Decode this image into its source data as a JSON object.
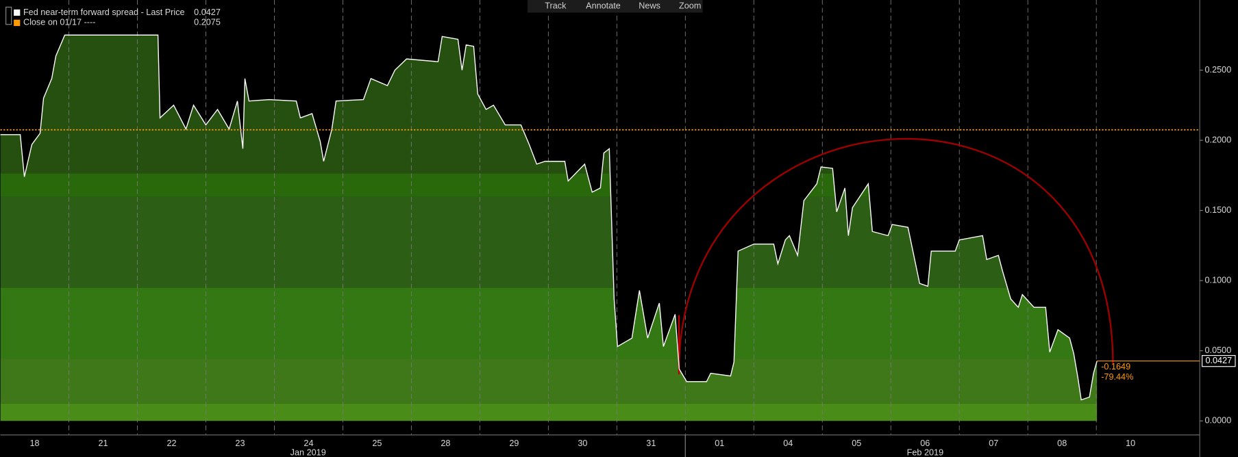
{
  "chart_data": {
    "type": "area",
    "series": [
      {
        "name": "Fed near-term forward spread - Last Price",
        "color": "#ffffff",
        "last_value": 0.0427,
        "x": [
          0,
          0.29,
          0.35,
          0.46,
          0.58,
          0.63,
          0.75,
          0.81,
          0.94,
          2.3,
          2.33,
          2.53,
          2.71,
          2.82,
          3.0,
          3.17,
          3.34,
          3.46,
          3.54,
          3.57,
          3.63,
          3.92,
          4.32,
          4.38,
          4.55,
          4.67,
          4.72,
          4.84,
          4.9,
          5.3,
          5.41,
          5.65,
          5.76,
          5.93,
          6.39,
          6.45,
          6.68,
          6.74,
          6.8,
          6.91,
          6.97,
          7.09,
          7.2,
          7.37,
          7.6,
          7.72,
          7.83,
          7.95,
          8.24,
          8.29,
          8.53,
          8.64,
          8.76,
          8.81,
          8.89,
          8.96,
          9.01,
          9.22,
          9.33,
          9.45,
          9.62,
          9.68,
          9.85,
          9.91,
          10.02,
          10.31,
          10.37,
          10.66,
          10.71,
          10.77,
          11.0,
          11.29,
          11.35,
          11.46,
          11.52,
          11.64,
          11.73,
          11.92,
          11.98,
          12.15,
          12.21,
          12.33,
          12.38,
          12.44,
          12.67,
          12.73,
          12.96,
          13.02,
          13.25,
          13.42,
          13.54,
          13.59,
          13.94,
          14.0,
          14.34,
          14.4,
          14.57,
          14.63,
          14.75,
          14.86,
          14.92,
          15.09,
          15.26,
          15.32,
          15.44,
          15.61,
          15.67,
          15.73,
          15.78,
          15.9,
          15.96,
          16.01
        ],
        "values": [
          0.204,
          0.204,
          0.174,
          0.197,
          0.205,
          0.23,
          0.244,
          0.26,
          0.275,
          0.275,
          0.216,
          0.225,
          0.208,
          0.225,
          0.211,
          0.222,
          0.208,
          0.228,
          0.194,
          0.244,
          0.228,
          0.229,
          0.228,
          0.216,
          0.219,
          0.199,
          0.185,
          0.208,
          0.228,
          0.229,
          0.244,
          0.239,
          0.25,
          0.258,
          0.256,
          0.274,
          0.272,
          0.25,
          0.268,
          0.267,
          0.233,
          0.222,
          0.225,
          0.211,
          0.211,
          0.197,
          0.183,
          0.185,
          0.185,
          0.171,
          0.183,
          0.163,
          0.166,
          0.191,
          0.194,
          0.087,
          0.053,
          0.059,
          0.093,
          0.059,
          0.084,
          0.053,
          0.076,
          0.037,
          0.028,
          0.028,
          0.034,
          0.032,
          0.042,
          0.121,
          0.126,
          0.126,
          0.112,
          0.129,
          0.132,
          0.118,
          0.157,
          0.169,
          0.181,
          0.18,
          0.149,
          0.166,
          0.132,
          0.152,
          0.169,
          0.135,
          0.132,
          0.14,
          0.138,
          0.098,
          0.096,
          0.121,
          0.121,
          0.129,
          0.132,
          0.115,
          0.118,
          0.107,
          0.087,
          0.081,
          0.09,
          0.081,
          0.081,
          0.049,
          0.065,
          0.059,
          0.048,
          0.031,
          0.015,
          0.017,
          0.034,
          0.0427
        ]
      }
    ],
    "reference_line": {
      "name": "Close on 01/17 ----",
      "value": 0.2075,
      "color": "#ff9900"
    },
    "annotations": [
      "-0.1649",
      "-79.44%"
    ],
    "xlim": [
      0,
      17.51
    ],
    "xticks": [
      {
        "value": 0.5,
        "label": "18"
      },
      {
        "value": 1.5,
        "label": "21"
      },
      {
        "value": 2.5,
        "label": "22"
      },
      {
        "value": 3.5,
        "label": "23"
      },
      {
        "value": 4.5,
        "label": "24"
      },
      {
        "value": 5.5,
        "label": "25"
      },
      {
        "value": 6.5,
        "label": "28"
      },
      {
        "value": 7.5,
        "label": "29"
      },
      {
        "value": 8.5,
        "label": "30"
      },
      {
        "value": 9.5,
        "label": "31"
      },
      {
        "value": 10.5,
        "label": "01"
      },
      {
        "value": 11.5,
        "label": "04"
      },
      {
        "value": 12.5,
        "label": "05"
      },
      {
        "value": 13.5,
        "label": "06"
      },
      {
        "value": 14.5,
        "label": "07"
      },
      {
        "value": 15.5,
        "label": "08"
      },
      {
        "value": 16.5,
        "label": "10"
      }
    ],
    "months": [
      "Jan 2019",
      "Feb 2019"
    ],
    "ylim": [
      -0.01,
      0.3
    ],
    "yticks": [
      {
        "value": 0,
        "label": "0.0000"
      },
      {
        "value": 0.05,
        "label": "0.0500"
      },
      {
        "value": 0.1,
        "label": "0.1000"
      },
      {
        "value": 0.15,
        "label": "0.1500"
      },
      {
        "value": 0.2,
        "label": "0.2000"
      },
      {
        "value": 0.25,
        "label": "0.2500"
      }
    ],
    "grid": true
  },
  "toolbar": [
    "Track",
    "Annotate",
    "News",
    "Zoom"
  ]
}
